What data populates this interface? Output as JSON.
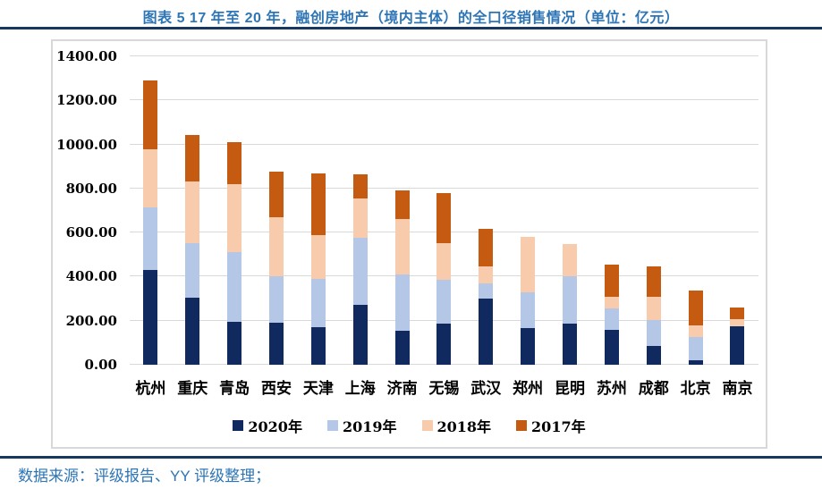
{
  "header": {
    "title": "图表 5 17 年至 20 年，融创房地产（境内主体）的全口径销售情况（单位：亿元）"
  },
  "footer": {
    "source_note": "数据来源：评级报告、YY 评级整理；"
  },
  "colors": {
    "title_blue": "#2E75B6",
    "rule_navy": "#17375E",
    "gridline_gray": "#D9D9D9",
    "panel_border": "#D8D8D8",
    "series_2020": "#10295F",
    "series_2019": "#B4C7E7",
    "series_2018": "#F8CBAD",
    "series_2017": "#C55A11"
  },
  "chart_data": {
    "type": "bar",
    "stacked": true,
    "grid": true,
    "legend_position": "bottom",
    "unit": "亿元",
    "ylim": [
      0,
      1400
    ],
    "ytick_step": 200,
    "ytick_labels": [
      "0.00",
      "200.00",
      "400.00",
      "600.00",
      "800.00",
      "1000.00",
      "1200.00",
      "1400.00"
    ],
    "categories": [
      "杭州",
      "重庆",
      "青岛",
      "西安",
      "天津",
      "上海",
      "济南",
      "无锡",
      "武汉",
      "郑州",
      "昆明",
      "苏州",
      "成都",
      "北京",
      "南京"
    ],
    "series": [
      {
        "name": "2020年",
        "color": "#10295F",
        "values": [
          430,
          305,
          195,
          190,
          170,
          270,
          155,
          185,
          300,
          165,
          185,
          160,
          85,
          20,
          175
        ]
      },
      {
        "name": "2019年",
        "color": "#B4C7E7",
        "values": [
          285,
          245,
          315,
          210,
          220,
          305,
          255,
          200,
          70,
          165,
          215,
          95,
          120,
          105,
          0
        ]
      },
      {
        "name": "2018年",
        "color": "#F8CBAD",
        "values": [
          265,
          280,
          310,
          270,
          200,
          180,
          250,
          165,
          75,
          250,
          150,
          55,
          105,
          55,
          30
        ]
      },
      {
        "name": "2017年",
        "color": "#C55A11",
        "values": [
          310,
          215,
          190,
          205,
          280,
          110,
          130,
          230,
          170,
          0,
          0,
          145,
          135,
          155,
          55
        ]
      }
    ],
    "totals_approx": [
      1290,
      1045,
      1010,
      875,
      870,
      865,
      790,
      780,
      615,
      580,
      550,
      455,
      445,
      335,
      260
    ]
  }
}
